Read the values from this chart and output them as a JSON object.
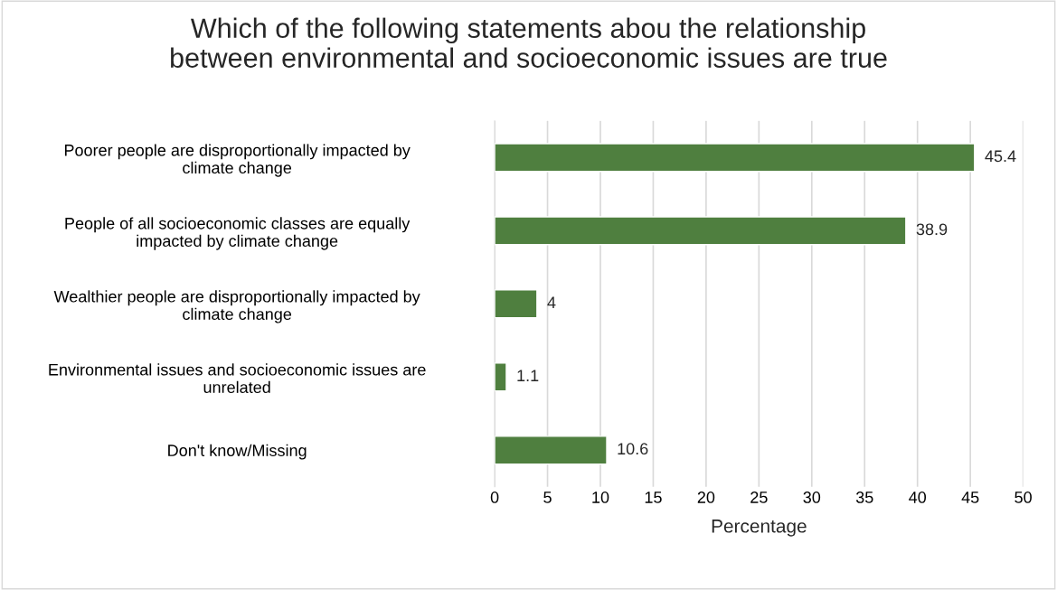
{
  "chart_data": {
    "type": "bar",
    "orientation": "horizontal",
    "title": "Which of the following statements abou the relationship\nbetween environmental and socioeconomic issues are true",
    "xlabel": "Percentage",
    "categories": [
      "Poorer people are disproportionally impacted by\nclimate change",
      "People of all socioeconomic classes are equally\nimpacted by climate change",
      "Wealthier people are disproportionally impacted by\nclimate change",
      "Environmental issues and socioeconomic issues are\nunrelated",
      "Don't know/Missing"
    ],
    "values": [
      45.4,
      38.9,
      4,
      1.1,
      10.6
    ],
    "color": "#4f7f3f",
    "xlim": [
      0,
      50
    ],
    "xticks": [
      0,
      5,
      10,
      15,
      20,
      25,
      30,
      35,
      40,
      45,
      50
    ],
    "grid": "x",
    "data_labels": true,
    "legend": false
  }
}
